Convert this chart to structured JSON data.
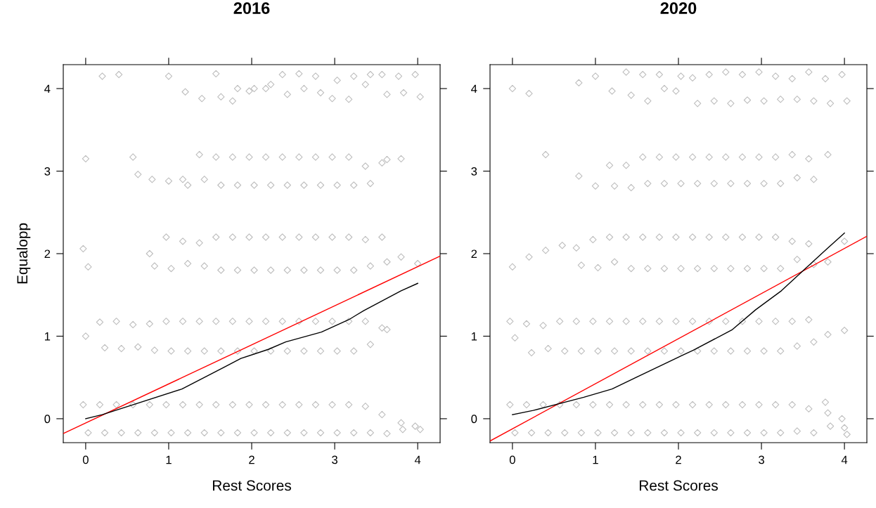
{
  "chart_data": [
    {
      "type": "scatter",
      "title": "2016",
      "xlabel": "Rest Scores",
      "ylabel": "Equalopp",
      "xlim": [
        -0.27,
        4.27
      ],
      "ylim": [
        -0.29,
        4.29
      ],
      "xticks": [
        0,
        1,
        2,
        3,
        4
      ],
      "yticks": [
        0,
        1,
        2,
        3,
        4
      ],
      "series": [
        {
          "marker": "diamond",
          "color": "#bebebe",
          "x": [
            -0.03,
            0.03,
            0.17,
            0.23,
            0.37,
            0.43,
            0.57,
            0.63,
            0.77,
            0.83,
            0.97,
            1.03,
            1.17,
            1.23,
            1.37,
            1.43,
            1.57,
            1.63,
            1.77,
            1.83,
            1.97,
            2.03,
            2.17,
            2.23,
            2.37,
            2.43,
            2.57,
            2.63,
            2.77,
            2.83,
            2.97,
            3.03,
            3.17,
            3.23,
            3.37,
            3.43,
            3.57,
            3.63,
            3.8,
            3.82,
            3.97,
            4.03,
            0,
            0.17,
            0.23,
            0.37,
            0.43,
            0.57,
            0.63,
            0.77,
            0.83,
            0.97,
            1.03,
            1.17,
            1.23,
            1.37,
            1.43,
            1.57,
            1.63,
            1.77,
            1.83,
            1.97,
            2.03,
            2.17,
            2.23,
            2.37,
            2.43,
            2.57,
            2.63,
            2.77,
            2.83,
            2.97,
            3.03,
            3.17,
            3.23,
            3.37,
            3.43,
            3.57,
            3.63,
            -0.03,
            0.03,
            0.77,
            0.83,
            0.97,
            1.03,
            1.17,
            1.23,
            1.37,
            1.43,
            1.57,
            1.63,
            1.77,
            1.83,
            1.97,
            2.03,
            2.17,
            2.23,
            2.37,
            2.43,
            2.57,
            2.63,
            2.77,
            2.83,
            2.97,
            3.03,
            3.17,
            3.23,
            3.37,
            3.43,
            3.57,
            3.63,
            3.8,
            4.0,
            0,
            0.57,
            0.63,
            0.8,
            1.0,
            1.17,
            1.23,
            1.37,
            1.43,
            1.57,
            1.63,
            1.77,
            1.83,
            1.97,
            2.03,
            2.17,
            2.23,
            2.37,
            2.43,
            2.57,
            2.63,
            2.77,
            2.83,
            2.97,
            3.03,
            3.17,
            3.23,
            3.37,
            3.43,
            3.57,
            3.63,
            3.8,
            0.2,
            0.4,
            1.0,
            1.2,
            1.4,
            1.57,
            1.63,
            1.77,
            1.83,
            1.97,
            2.03,
            2.17,
            2.23,
            2.37,
            2.43,
            2.57,
            2.63,
            2.77,
            2.83,
            2.97,
            3.03,
            3.17,
            3.23,
            3.37,
            3.43,
            3.57,
            3.63,
            3.77,
            3.83,
            3.97,
            4.03
          ],
          "values": [
            0.17,
            -0.17,
            0.17,
            -0.17,
            0.17,
            -0.17,
            0.17,
            -0.17,
            0.17,
            -0.17,
            0.17,
            -0.17,
            0.17,
            -0.17,
            0.17,
            -0.17,
            0.17,
            -0.17,
            0.17,
            -0.17,
            0.17,
            -0.17,
            0.17,
            -0.17,
            0.17,
            -0.17,
            0.17,
            -0.17,
            0.17,
            -0.17,
            0.17,
            -0.17,
            0.17,
            -0.17,
            0.15,
            -0.17,
            0.05,
            -0.18,
            -0.05,
            -0.13,
            -0.09,
            -0.13,
            1.0,
            1.17,
            0.86,
            1.18,
            0.85,
            1.14,
            0.87,
            1.15,
            0.83,
            1.18,
            0.82,
            1.18,
            0.82,
            1.18,
            0.82,
            1.18,
            0.82,
            1.18,
            0.82,
            1.18,
            0.82,
            1.18,
            0.82,
            1.18,
            0.82,
            1.18,
            0.82,
            1.18,
            0.82,
            1.18,
            0.82,
            1.18,
            0.82,
            1.18,
            0.9,
            1.1,
            1.08,
            2.06,
            1.84,
            2.0,
            1.85,
            2.2,
            1.82,
            2.15,
            1.88,
            2.13,
            1.85,
            2.2,
            1.8,
            2.2,
            1.8,
            2.2,
            1.8,
            2.2,
            1.8,
            2.2,
            1.8,
            2.2,
            1.8,
            2.2,
            1.8,
            2.2,
            1.8,
            2.2,
            1.8,
            2.17,
            1.85,
            2.2,
            1.9,
            1.96,
            1.88,
            3.15,
            3.17,
            2.96,
            2.9,
            2.88,
            2.9,
            2.83,
            3.2,
            2.9,
            3.17,
            2.83,
            3.17,
            2.83,
            3.17,
            2.83,
            3.17,
            2.83,
            3.17,
            2.83,
            3.17,
            2.83,
            3.17,
            2.83,
            3.17,
            2.83,
            3.17,
            2.83,
            3.06,
            2.85,
            3.1,
            3.14,
            3.15,
            4.15,
            4.17,
            4.15,
            3.96,
            3.88,
            4.18,
            3.9,
            3.85,
            4.0,
            3.97,
            4.0,
            4.0,
            4.05,
            4.17,
            3.93,
            4.18,
            4.0,
            4.15,
            3.95,
            3.88,
            4.1,
            3.87,
            4.15,
            4.05,
            4.17,
            4.17,
            3.93,
            4.15,
            3.95,
            4.17,
            3.9
          ]
        },
        {
          "type": "line",
          "color": "#ff0000",
          "line_style": "solid",
          "x": [
            -0.27,
            4.27
          ],
          "values": [
            -0.18,
            1.97
          ]
        },
        {
          "type": "line",
          "color": "#000000",
          "line_style": "solid",
          "x": [
            0,
            0.2,
            1.16,
            1.66,
            1.87,
            2.2,
            2.41,
            2.84,
            3.17,
            3.35,
            3.8,
            4.0
          ],
          "values": [
            0.0,
            0.05,
            0.36,
            0.62,
            0.73,
            0.84,
            0.93,
            1.05,
            1.2,
            1.31,
            1.55,
            1.64
          ]
        }
      ]
    },
    {
      "type": "scatter",
      "title": "2020",
      "xlabel": "Rest Scores",
      "xlim": [
        -0.27,
        4.27
      ],
      "ylim": [
        -0.29,
        4.29
      ],
      "xticks": [
        0,
        1,
        2,
        3,
        4
      ],
      "yticks": [
        0,
        1,
        2,
        3,
        4
      ],
      "series": [
        {
          "marker": "diamond",
          "color": "#bebebe",
          "x": [
            -0.03,
            0.03,
            0.17,
            0.23,
            0.37,
            0.43,
            0.57,
            0.63,
            0.77,
            0.83,
            0.97,
            1.03,
            1.17,
            1.23,
            1.37,
            1.43,
            1.57,
            1.63,
            1.77,
            1.83,
            1.97,
            2.03,
            2.17,
            2.23,
            2.37,
            2.43,
            2.57,
            2.63,
            2.77,
            2.83,
            2.97,
            3.03,
            3.17,
            3.23,
            3.37,
            3.43,
            3.57,
            3.63,
            3.77,
            3.8,
            3.83,
            3.97,
            4.0,
            4.03,
            -0.03,
            0.03,
            0.17,
            0.23,
            0.37,
            0.43,
            0.57,
            0.63,
            0.77,
            0.83,
            0.97,
            1.03,
            1.17,
            1.23,
            1.37,
            1.43,
            1.57,
            1.63,
            1.77,
            1.83,
            1.97,
            2.03,
            2.17,
            2.23,
            2.37,
            2.43,
            2.57,
            2.63,
            2.77,
            2.83,
            2.97,
            3.03,
            3.17,
            3.23,
            3.37,
            3.43,
            3.57,
            3.63,
            3.8,
            4.0,
            0,
            0.2,
            0.4,
            0.6,
            0.77,
            0.83,
            0.97,
            1.03,
            1.17,
            1.23,
            1.37,
            1.43,
            1.57,
            1.63,
            1.77,
            1.83,
            1.97,
            2.03,
            2.17,
            2.23,
            2.37,
            2.43,
            2.57,
            2.63,
            2.77,
            2.83,
            2.97,
            3.03,
            3.17,
            3.23,
            3.37,
            3.43,
            3.57,
            3.63,
            3.8,
            4.0,
            0.4,
            0.8,
            1.0,
            1.17,
            1.23,
            1.37,
            1.43,
            1.57,
            1.63,
            1.77,
            1.83,
            1.97,
            2.03,
            2.17,
            2.23,
            2.37,
            2.43,
            2.57,
            2.63,
            2.77,
            2.83,
            2.97,
            3.03,
            3.17,
            3.23,
            3.37,
            3.43,
            3.57,
            3.63,
            3.8,
            0,
            0.2,
            0.8,
            1.0,
            1.2,
            1.37,
            1.43,
            1.57,
            1.63,
            1.77,
            1.83,
            1.97,
            2.03,
            2.17,
            2.23,
            2.37,
            2.43,
            2.57,
            2.63,
            2.77,
            2.83,
            2.97,
            3.03,
            3.17,
            3.23,
            3.37,
            3.43,
            3.57,
            3.63,
            3.77,
            3.83,
            3.97,
            4.03
          ],
          "values": [
            0.17,
            -0.17,
            0.17,
            -0.17,
            0.17,
            -0.17,
            0.17,
            -0.17,
            0.17,
            -0.17,
            0.17,
            -0.17,
            0.17,
            -0.17,
            0.17,
            -0.17,
            0.17,
            -0.17,
            0.17,
            -0.17,
            0.17,
            -0.17,
            0.17,
            -0.17,
            0.17,
            -0.17,
            0.17,
            -0.17,
            0.17,
            -0.17,
            0.17,
            -0.17,
            0.17,
            -0.17,
            0.17,
            -0.15,
            0.12,
            -0.17,
            0.2,
            0.07,
            -0.09,
            0.0,
            -0.11,
            -0.19,
            1.18,
            0.98,
            1.15,
            0.8,
            1.13,
            0.85,
            1.18,
            0.82,
            1.18,
            0.82,
            1.18,
            0.82,
            1.18,
            0.82,
            1.18,
            0.82,
            1.18,
            0.82,
            1.18,
            0.82,
            1.18,
            0.82,
            1.18,
            0.82,
            1.18,
            0.82,
            1.18,
            0.82,
            1.18,
            0.82,
            1.18,
            0.82,
            1.18,
            0.82,
            1.18,
            0.88,
            1.2,
            0.93,
            1.02,
            1.07,
            1.84,
            1.96,
            2.04,
            2.1,
            2.07,
            1.86,
            2.17,
            1.83,
            2.2,
            1.9,
            2.2,
            1.82,
            2.2,
            1.82,
            2.2,
            1.82,
            2.2,
            1.82,
            2.2,
            1.82,
            2.2,
            1.82,
            2.2,
            1.82,
            2.2,
            1.82,
            2.2,
            1.82,
            2.2,
            1.82,
            2.15,
            1.93,
            2.12,
            1.87,
            1.9,
            2.15,
            3.2,
            2.94,
            2.82,
            3.07,
            2.82,
            3.07,
            2.8,
            3.17,
            2.85,
            3.17,
            2.85,
            3.17,
            2.85,
            3.17,
            2.85,
            3.17,
            2.85,
            3.17,
            2.85,
            3.17,
            2.85,
            3.17,
            2.85,
            3.17,
            2.85,
            3.2,
            2.92,
            3.15,
            2.9,
            3.2,
            4.0,
            3.94,
            4.07,
            4.15,
            3.97,
            4.2,
            3.92,
            4.17,
            3.85,
            4.17,
            4.0,
            3.97,
            4.15,
            4.13,
            3.82,
            4.17,
            3.85,
            4.2,
            3.82,
            4.17,
            3.86,
            4.2,
            3.85,
            4.15,
            3.87,
            4.12,
            3.87,
            4.2,
            3.85,
            4.12,
            3.82,
            4.17,
            3.85
          ]
        },
        {
          "type": "line",
          "color": "#ff0000",
          "line_style": "solid",
          "x": [
            -0.27,
            4.27
          ],
          "values": [
            -0.27,
            2.21
          ]
        },
        {
          "type": "line",
          "color": "#000000",
          "line_style": "solid",
          "x": [
            0,
            0.25,
            0.86,
            1.2,
            1.49,
            2.03,
            2.18,
            2.65,
            2.93,
            3.24,
            3.52,
            3.79,
            4.0
          ],
          "values": [
            0.05,
            0.1,
            0.26,
            0.36,
            0.5,
            0.76,
            0.83,
            1.08,
            1.32,
            1.55,
            1.81,
            2.06,
            2.25
          ]
        }
      ]
    }
  ]
}
